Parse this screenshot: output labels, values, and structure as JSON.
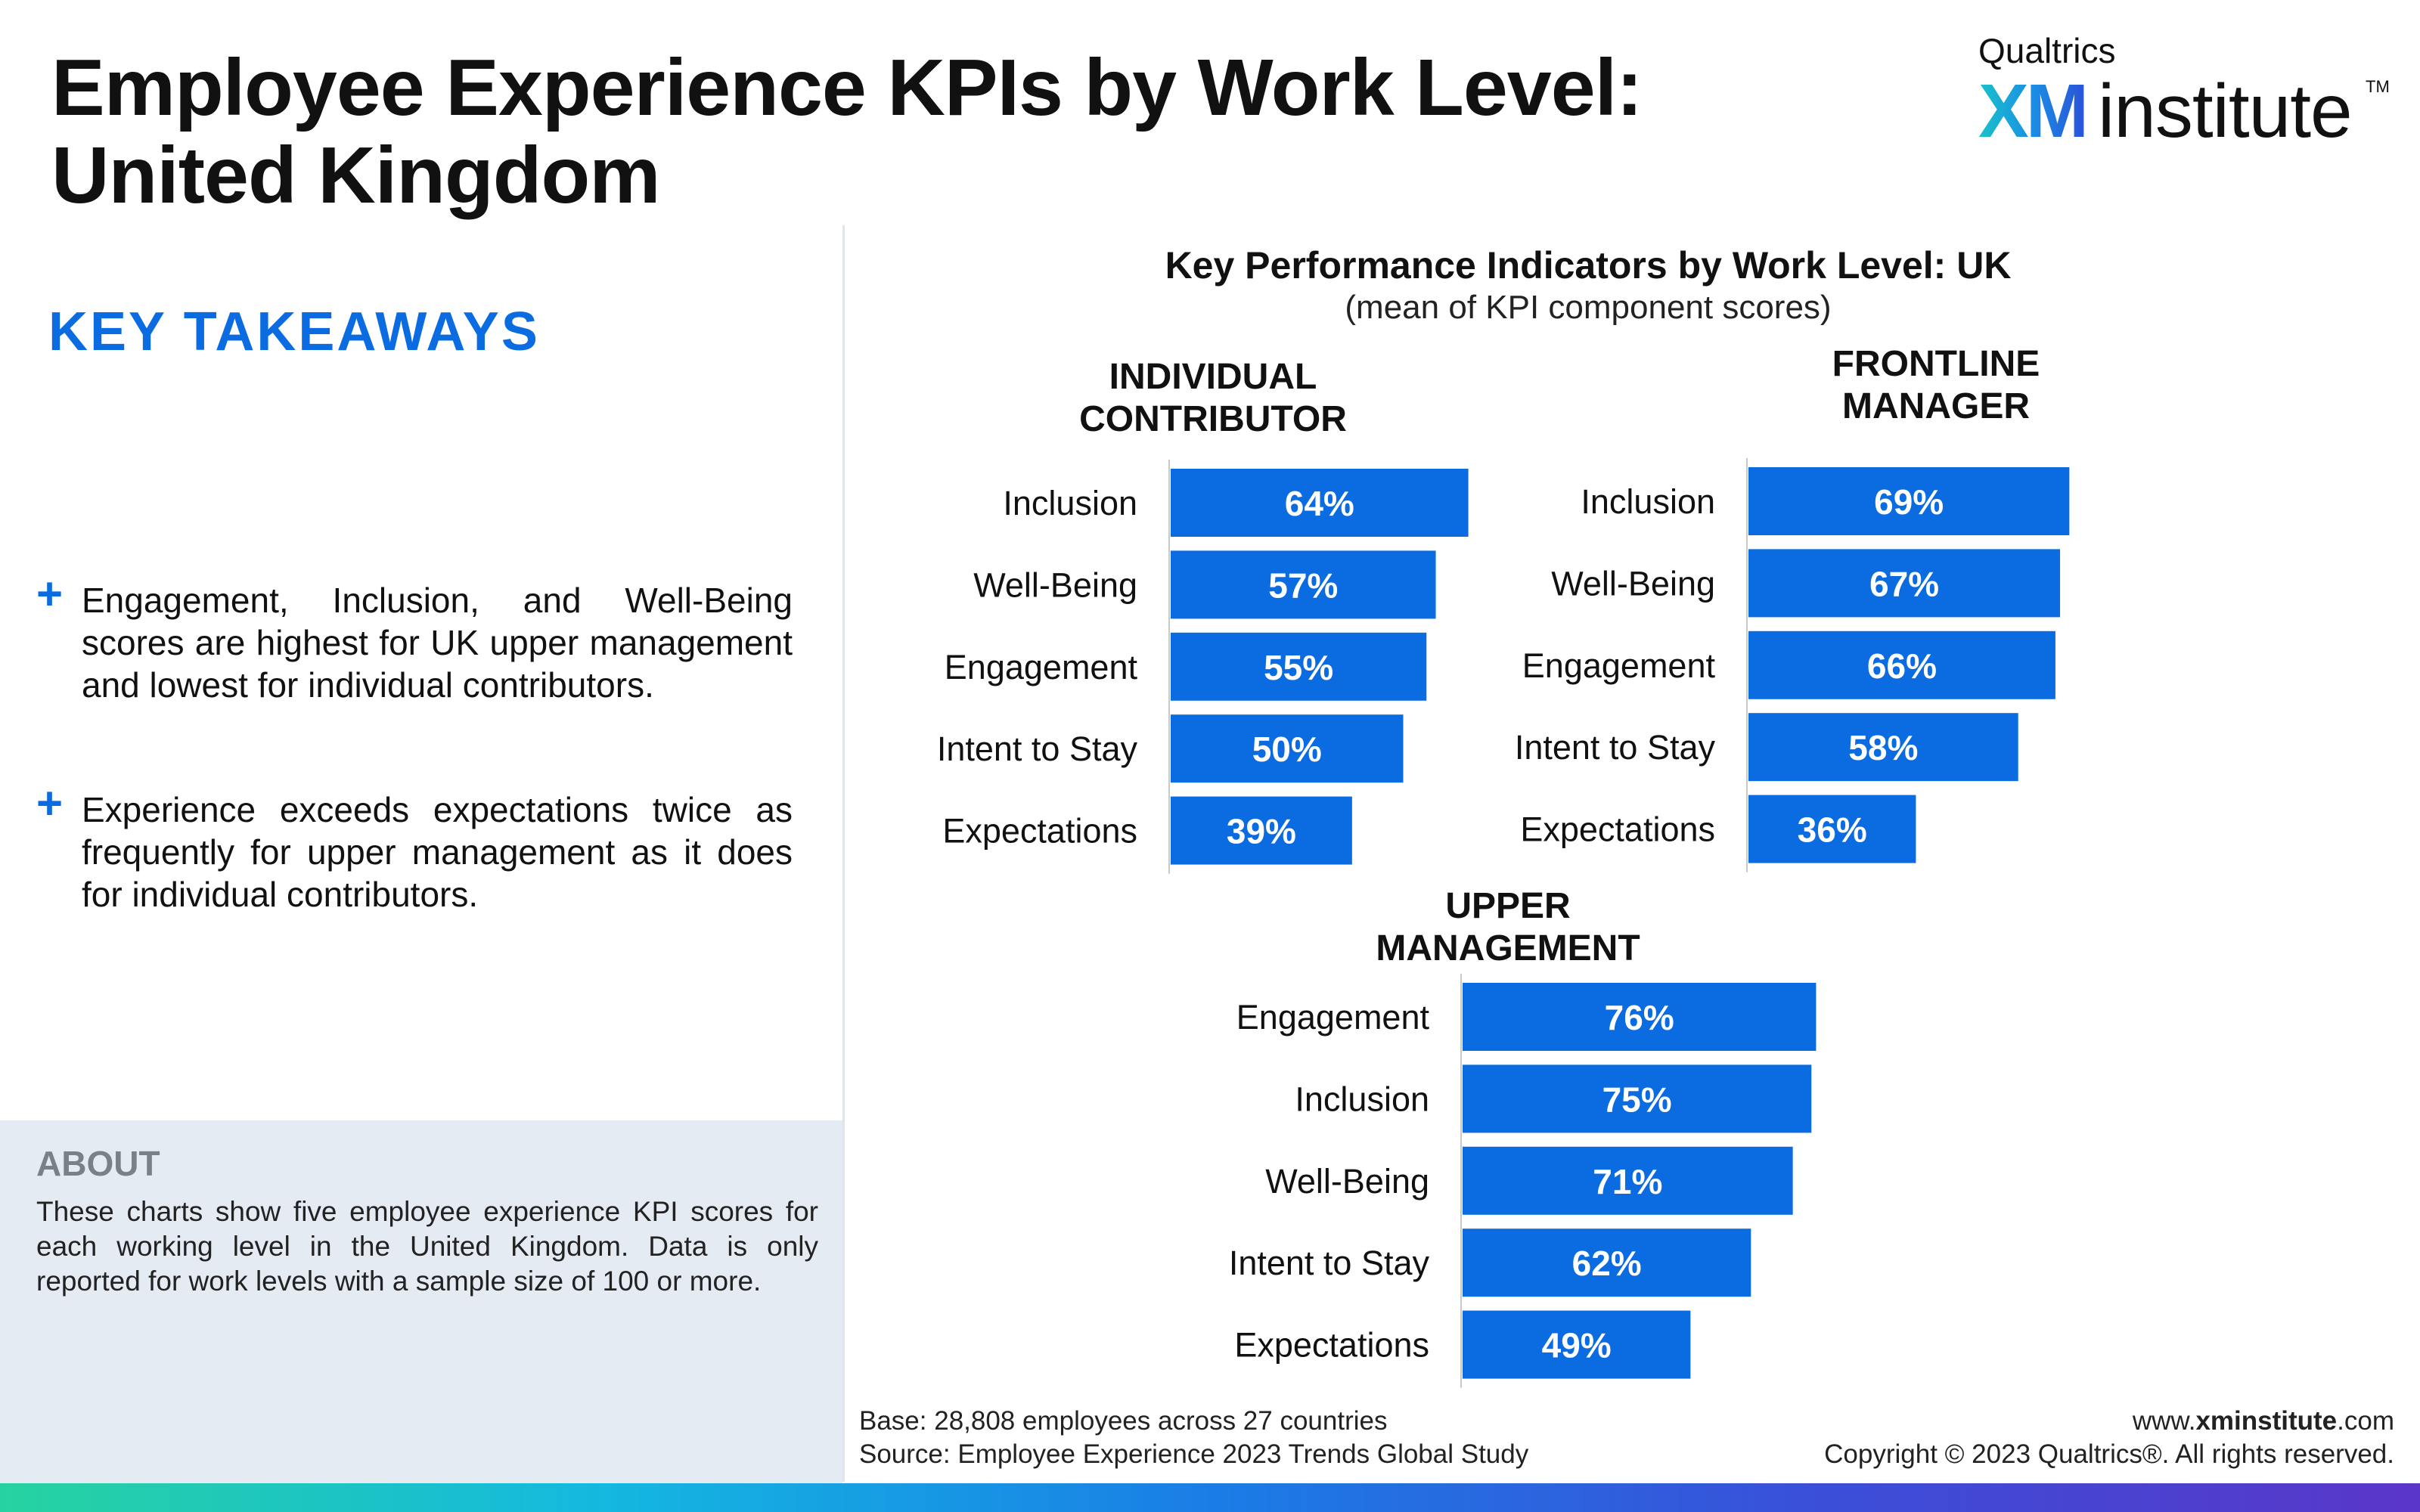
{
  "title": {
    "line1": "Employee Experience KPIs by Work Level:",
    "line2": "United Kingdom"
  },
  "logo": {
    "top": "Qualtrics",
    "xm": "XM",
    "institute": "institute",
    "tm": "TM"
  },
  "key_takeaways": {
    "heading": "KEY TAKEAWAYS",
    "items": [
      "Engagement, Inclusion, and Well-Being scores are highest for UK upper management and lowest for individual contributors.",
      "Experience exceeds expectations twice as frequently for upper management as it does for individual contributors."
    ]
  },
  "about": {
    "heading": "ABOUT",
    "text": "These charts show five employee experience KPI scores for each working level in the United Kingdom. Data is only reported for work levels with a sample size of 100 or more."
  },
  "chart_title": "Key Performance Indicators by Work Level: UK",
  "chart_subtitle": "(mean of KPI component scores)",
  "chart_data": [
    {
      "type": "bar",
      "orientation": "horizontal",
      "title": [
        "INDIVIDUAL",
        "CONTRIBUTOR"
      ],
      "categories": [
        "Inclusion",
        "Well-Being",
        "Engagement",
        "Intent to Stay",
        "Expectations"
      ],
      "values": [
        64,
        57,
        55,
        50,
        39
      ],
      "labels": [
        "64%",
        "57%",
        "55%",
        "50%",
        "39%"
      ],
      "unit": "%",
      "color": "#0b6be0"
    },
    {
      "type": "bar",
      "orientation": "horizontal",
      "title": [
        "FRONTLINE",
        "MANAGER"
      ],
      "categories": [
        "Inclusion",
        "Well-Being",
        "Engagement",
        "Intent to Stay",
        "Expectations"
      ],
      "values": [
        69,
        67,
        66,
        58,
        36
      ],
      "labels": [
        "69%",
        "67%",
        "66%",
        "58%",
        "36%"
      ],
      "unit": "%",
      "color": "#0b6be0"
    },
    {
      "type": "bar",
      "orientation": "horizontal",
      "title": [
        "UPPER",
        "MANAGEMENT"
      ],
      "categories": [
        "Engagement",
        "Inclusion",
        "Well-Being",
        "Intent to Stay",
        "Expectations"
      ],
      "values": [
        76,
        75,
        71,
        62,
        49
      ],
      "labels": [
        "76%",
        "75%",
        "71%",
        "62%",
        "49%"
      ],
      "unit": "%",
      "color": "#0b6be0"
    }
  ],
  "footer": {
    "base": "Base: 28,808 employees across 27 countries",
    "source": "Source: Employee Experience 2023 Trends Global Study",
    "url_prefix": "www.",
    "url_bold": "xminstitute",
    "url_suffix": ".com",
    "copyright": "Copyright © 2023 Qualtrics®. All rights reserved."
  },
  "colors": {
    "accent": "#0b6be0",
    "about_bg": "#e4ebf3",
    "about_heading": "#7a8088"
  }
}
